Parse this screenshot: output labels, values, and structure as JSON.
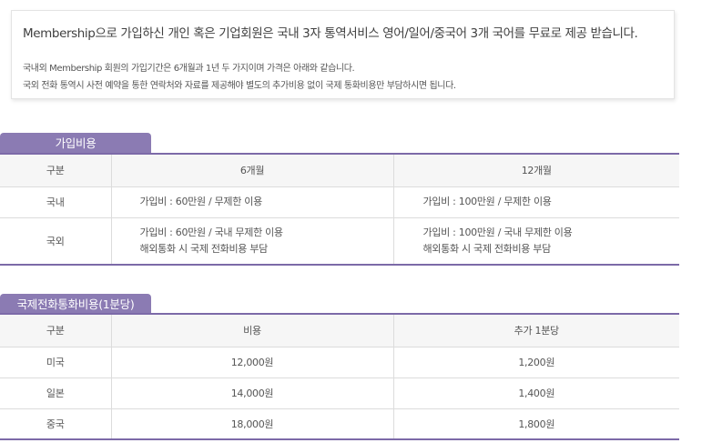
{
  "notice": {
    "headline": "Membership으로 가입하신 개인 혹은 기업회원은 국내 3자 통역서비스 영어/일어/중국어 3개 국어를 무료로 제공 받습니다.",
    "desc1": "국내외 Membership 회원의 가입기간은 6개월과 1년 두 가지이며 가격은 아래와 같습니다.",
    "desc2": "국외 전화 통역시 사전 예약을 통한 연락처와 자료를 제공해야 별도의 추가비용 없이 국제 통화비용만 부담하시면 됩니다."
  },
  "fee_section": {
    "tab": "가입비용",
    "headers": [
      "구분",
      "6개월",
      "12개월"
    ],
    "rows": [
      {
        "label": "국내",
        "six": [
          "가입비 : 60만원 / 무제한 이용"
        ],
        "twelve": [
          "가입비 : 100만원 / 무제한 이용"
        ]
      },
      {
        "label": "국외",
        "six": [
          "가입비 : 60만원 / 국내 무제한 이용",
          "해외통화 시 국제 전화비용 부담"
        ],
        "twelve": [
          "가입비 : 100만원 / 국내 무제한 이용",
          "해외통화 시 국제 전화비용 부담"
        ]
      }
    ]
  },
  "call_section": {
    "tab": "국제전화통화비용(1분당)",
    "headers": [
      "구분",
      "비용",
      "추가 1분당"
    ],
    "rows": [
      {
        "label": "미국",
        "cost": "12,000원",
        "extra": "1,200원"
      },
      {
        "label": "일본",
        "cost": "14,000원",
        "extra": "1,400원"
      },
      {
        "label": "중국",
        "cost": "18,000원",
        "extra": "1,800원"
      }
    ]
  },
  "colors": {
    "tab_bg": "#8b7bb3",
    "table_rule": "#7c6aa8",
    "header_bg": "#f6f6f6"
  }
}
